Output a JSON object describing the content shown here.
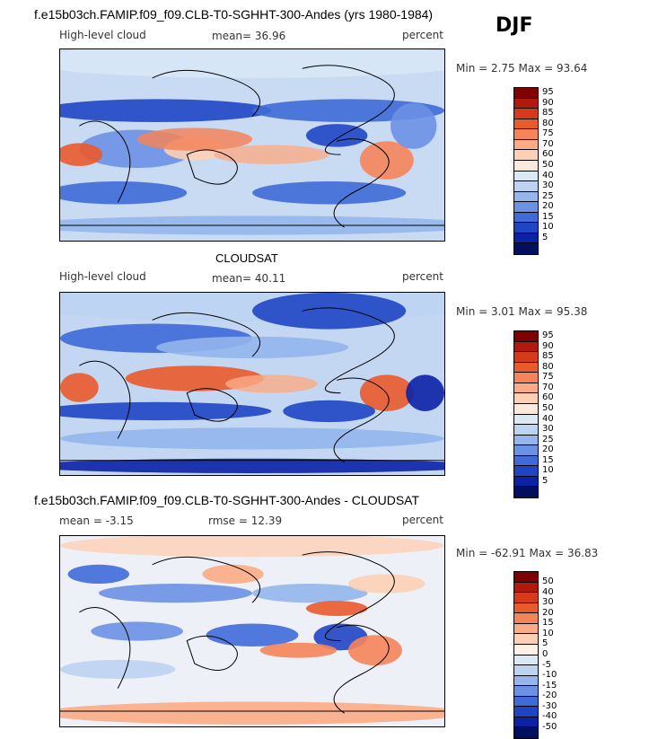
{
  "header": {
    "title": "f.e15b03ch.FAMIP.f09_f09.CLB-T0-SGHHT-300-Andes (yrs 1980-1984)",
    "season": "DJF"
  },
  "panels": [
    {
      "id": "model",
      "left_label": "High-level cloud",
      "center_label": "mean=  36.96",
      "right_label": "percent",
      "minmax": "Min =   2.75 Max =  93.64",
      "colorbar_levels": [
        "95",
        "90",
        "85",
        "80",
        "75",
        "70",
        "60",
        "50",
        "40",
        "30",
        "25",
        "20",
        "15",
        "10",
        "5"
      ],
      "colors": [
        "#7f0000",
        "#b2180b",
        "#d63a1a",
        "#ea5a2c",
        "#f5845a",
        "#fbab85",
        "#fdd0b5",
        "#fbe9dc",
        "#dbe8f6",
        "#bcd3f2",
        "#94b6ec",
        "#6b91e4",
        "#3f6ad8",
        "#1f45c4",
        "#0b22a6",
        "#00105e"
      ]
    },
    {
      "id": "obs",
      "top_title": "CLOUDSAT",
      "left_label": "High-level cloud",
      "center_label": "mean=  40.11",
      "right_label": "percent",
      "minmax": "Min =   3.01 Max =  95.38",
      "colorbar_levels": [
        "95",
        "90",
        "85",
        "80",
        "75",
        "70",
        "60",
        "50",
        "40",
        "30",
        "25",
        "20",
        "15",
        "10",
        "5"
      ],
      "colors": [
        "#7f0000",
        "#b2180b",
        "#d63a1a",
        "#ea5a2c",
        "#f5845a",
        "#fbab85",
        "#fdd0b5",
        "#fbe9dc",
        "#dbe8f6",
        "#bcd3f2",
        "#94b6ec",
        "#6b91e4",
        "#3f6ad8",
        "#1f45c4",
        "#0b22a6",
        "#00105e"
      ]
    },
    {
      "id": "diff",
      "top_title": "f.e15b03ch.FAMIP.f09_f09.CLB-T0-SGHHT-300-Andes - CLOUDSAT",
      "left_label": "mean =  -3.15",
      "center_label": "rmse =  12.39",
      "right_label": "percent",
      "minmax": "Min = -62.91 Max =  36.83",
      "colorbar_levels": [
        "50",
        "40",
        "30",
        "20",
        "15",
        "10",
        "5",
        "0",
        "-5",
        "-10",
        "-15",
        "-20",
        "-30",
        "-40",
        "-50"
      ],
      "colors": [
        "#7f0000",
        "#b2180b",
        "#d63a1a",
        "#ea5a2c",
        "#f5845a",
        "#fbab85",
        "#fdd0b5",
        "#fdf0e6",
        "#dbe8f6",
        "#bcd3f2",
        "#94b6ec",
        "#6b91e4",
        "#3f6ad8",
        "#1f45c4",
        "#0b22a6",
        "#00105e"
      ]
    }
  ]
}
